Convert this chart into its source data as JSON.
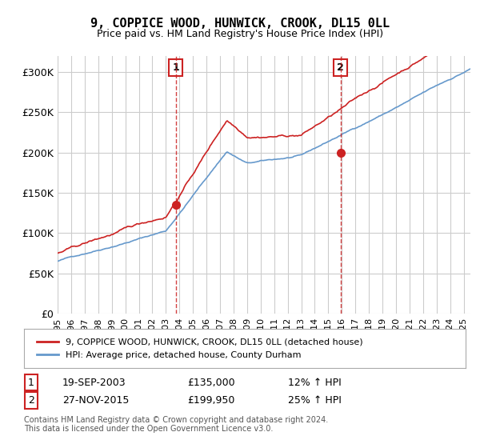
{
  "title": "9, COPPICE WOOD, HUNWICK, CROOK, DL15 0LL",
  "subtitle": "Price paid vs. HM Land Registry's House Price Index (HPI)",
  "ylabel_ticks": [
    "£0",
    "£50K",
    "£100K",
    "£150K",
    "£200K",
    "£250K",
    "£300K"
  ],
  "ytick_values": [
    0,
    50000,
    100000,
    150000,
    200000,
    250000,
    300000
  ],
  "ylim": [
    0,
    320000
  ],
  "xlim_start": 1995.0,
  "xlim_end": 2025.5,
  "sale1": {
    "date_float": 2003.72,
    "price": 135000,
    "label": "1",
    "pct": "12%"
  },
  "sale2": {
    "date_float": 2015.9,
    "price": 199950,
    "label": "2",
    "pct": "25%"
  },
  "hpi_color": "#6699cc",
  "price_color": "#cc2222",
  "annotation_box_color": "#cc2222",
  "grid_color": "#cccccc",
  "background_color": "#ffffff",
  "legend_entry1": "9, COPPICE WOOD, HUNWICK, CROOK, DL15 0LL (detached house)",
  "legend_entry2": "HPI: Average price, detached house, County Durham",
  "table_row1": [
    "1",
    "19-SEP-2003",
    "£135,000",
    "12% ↑ HPI"
  ],
  "table_row2": [
    "2",
    "27-NOV-2015",
    "£199,950",
    "25% ↑ HPI"
  ],
  "footer": "Contains HM Land Registry data © Crown copyright and database right 2024.\nThis data is licensed under the Open Government Licence v3.0."
}
